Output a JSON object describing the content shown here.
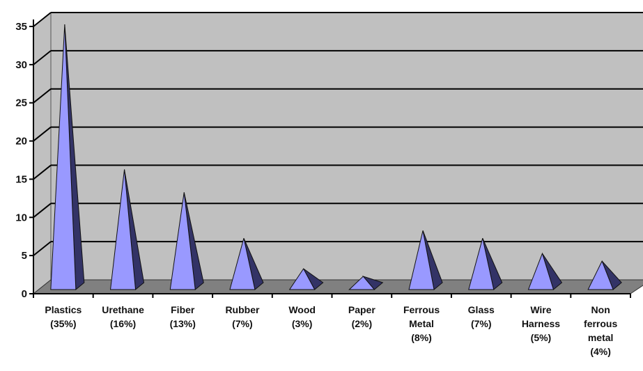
{
  "chart_data": {
    "type": "bar",
    "style": "3d-pyramid",
    "categories": [
      [
        "Plastics",
        "(35%)"
      ],
      [
        "Urethane",
        "(16%)"
      ],
      [
        "Fiber",
        "(13%)"
      ],
      [
        "Rubber",
        "(7%)"
      ],
      [
        "Wood",
        "(3%)"
      ],
      [
        "Paper",
        "(2%)"
      ],
      [
        "Ferrous",
        "Metal",
        "(8%)"
      ],
      [
        "Glass",
        "(7%)"
      ],
      [
        "Wire",
        "Harness",
        "(5%)"
      ],
      [
        "Non",
        "ferrous",
        "metal",
        "(4%)"
      ]
    ],
    "values": [
      35,
      16,
      13,
      7,
      3,
      2,
      8,
      7,
      5,
      4
    ],
    "ylim": [
      0,
      35
    ],
    "yticks": [
      0,
      5,
      10,
      15,
      20,
      25,
      30,
      35
    ],
    "grid": true,
    "legend": "none",
    "colors": {
      "wall": "#c0c0c0",
      "floor": "#808080",
      "front_face": "#9999ff",
      "side_face": "#333366",
      "gridline": "#000000"
    }
  }
}
